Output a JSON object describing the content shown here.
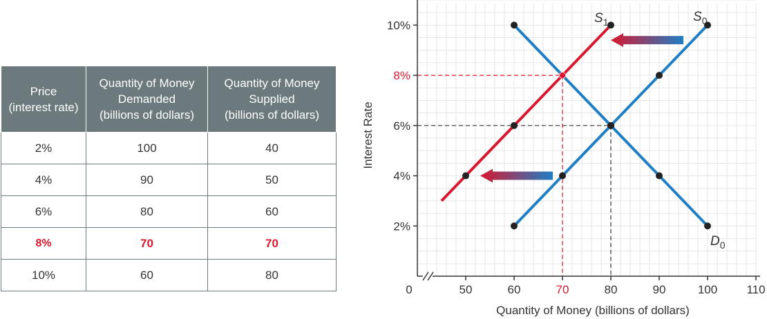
{
  "table": {
    "headers": [
      "Price\n(interest rate)",
      "Quantity of Money\nDemanded\n(billions of dollars)",
      "Quantity of Money\nSupplied\n(billions of dollars)"
    ],
    "rows": [
      {
        "price": "2%",
        "demanded": "100",
        "supplied": "40",
        "highlight": false
      },
      {
        "price": "4%",
        "demanded": "90",
        "supplied": "50",
        "highlight": false
      },
      {
        "price": "6%",
        "demanded": "80",
        "supplied": "60",
        "highlight": false
      },
      {
        "price": "8%",
        "demanded": "70",
        "supplied": "70",
        "highlight": true
      },
      {
        "price": "10%",
        "demanded": "60",
        "supplied": "80",
        "highlight": false
      }
    ]
  },
  "colors": {
    "header_bg": "#6c7a7e",
    "highlight": "#d7182f",
    "blue": "#1f7ec4",
    "red": "#d7182f",
    "grid": "#e6e6e6",
    "text": "#333333"
  },
  "chart_data": {
    "type": "line",
    "xlabel": "Quantity of Money (billions of dollars)",
    "ylabel": "Interest Rate",
    "xlim": [
      40,
      110
    ],
    "ylim": [
      0,
      11
    ],
    "x_origin_label": "0",
    "xticks": [
      50,
      60,
      70,
      80,
      90,
      100,
      110
    ],
    "yticks": [
      2,
      4,
      6,
      8,
      10
    ],
    "ytick_labels": [
      "2%",
      "4%",
      "6%",
      "8%",
      "10%"
    ],
    "highlight_x_tick": 70,
    "highlight_y_tick": 8,
    "grid": true,
    "series": [
      {
        "name": "D0",
        "label": "D",
        "subscript": "0",
        "color": "#1f7ec4",
        "points": [
          [
            60,
            10
          ],
          [
            70,
            8
          ],
          [
            80,
            6
          ],
          [
            90,
            4
          ],
          [
            100,
            2
          ]
        ],
        "markers": [
          [
            60,
            10
          ],
          [
            80,
            6
          ],
          [
            90,
            4
          ],
          [
            100,
            2
          ]
        ]
      },
      {
        "name": "S0",
        "label": "S",
        "subscript": "0",
        "color": "#1f7ec4",
        "points": [
          [
            60,
            2
          ],
          [
            70,
            4
          ],
          [
            80,
            6
          ],
          [
            90,
            8
          ],
          [
            100,
            10
          ]
        ],
        "markers": [
          [
            60,
            2
          ],
          [
            70,
            4
          ],
          [
            90,
            8
          ],
          [
            100,
            10
          ]
        ]
      },
      {
        "name": "S1",
        "label": "S",
        "subscript": "1",
        "color": "#d7182f",
        "points": [
          [
            45,
            3
          ],
          [
            50,
            4
          ],
          [
            60,
            6
          ],
          [
            70,
            8
          ],
          [
            80,
            10
          ]
        ],
        "markers": [
          [
            50,
            4
          ],
          [
            60,
            6
          ],
          [
            80,
            10
          ]
        ]
      }
    ],
    "equilibria": [
      {
        "x": 80,
        "y": 6,
        "color": "#333333"
      },
      {
        "x": 70,
        "y": 8,
        "color": "#d7182f"
      }
    ],
    "arrows": [
      {
        "from": [
          95,
          9.4
        ],
        "to": [
          80,
          9.4
        ]
      },
      {
        "from": [
          68,
          4
        ],
        "to": [
          53,
          4
        ]
      }
    ]
  }
}
